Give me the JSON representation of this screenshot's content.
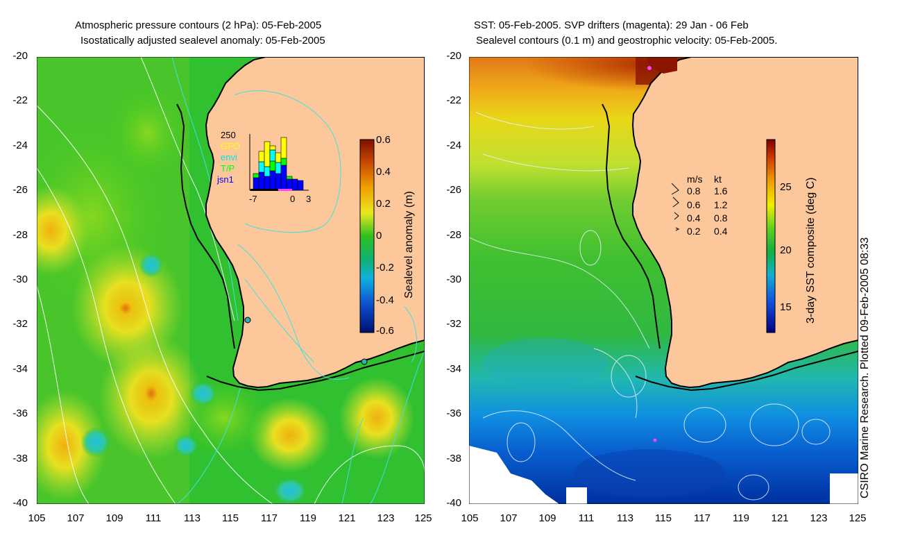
{
  "left_panel": {
    "title_line1": "Atmospheric pressure contours (2 hPa): 05-Feb-2005",
    "title_line2": "Isostatically adjusted sealevel anomaly: 05-Feb-2005",
    "colorbar_label": "Sealevel anomaly (m)",
    "colorbar_ticks": [
      "0.6",
      "0.4",
      "0.2",
      "0",
      "-0.2",
      "-0.4",
      "-0.6"
    ],
    "histogram": {
      "ymax_label": "250",
      "legend": [
        "GFO",
        "envi",
        "T/P",
        "jsn1"
      ],
      "legend_colors": [
        "#ffff00",
        "#00ffff",
        "#00ff00",
        "#0000ff"
      ],
      "x_ticks": [
        "-7",
        "0",
        "3"
      ]
    }
  },
  "right_panel": {
    "title_line1": "SST: 05-Feb-2005. SVP drifters (magenta): 29 Jan - 06 Feb",
    "title_line2": "Sealevel contours (0.1 m) and geostrophic velocity: 05-Feb-2005.",
    "colorbar_label": "3-day SST composite (deg C)",
    "colorbar_ticks": [
      "25",
      "20",
      "15"
    ],
    "velocity_legend": {
      "header_ms": "m/s",
      "header_kt": "kt",
      "rows": [
        {
          "ms": "0.8",
          "kt": "1.6"
        },
        {
          "ms": "0.6",
          "kt": "1.2"
        },
        {
          "ms": "0.4",
          "kt": "0.8"
        },
        {
          "ms": "0.2",
          "kt": "0.4"
        }
      ]
    }
  },
  "axes": {
    "y_ticks": [
      "-20",
      "-22",
      "-24",
      "-26",
      "-28",
      "-30",
      "-32",
      "-34",
      "-36",
      "-38",
      "-40"
    ],
    "x_ticks": [
      "105",
      "107",
      "109",
      "111",
      "113",
      "115",
      "117",
      "119",
      "121",
      "123",
      "125"
    ]
  },
  "credit": "CSIRO Marine Research. Plotted 09-Feb-2005 08:33",
  "colors": {
    "land": "#fcc89b",
    "coast": "#000000"
  }
}
